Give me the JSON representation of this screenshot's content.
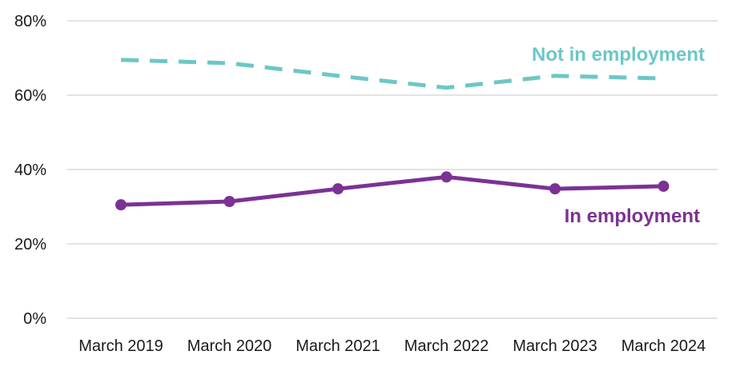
{
  "chart_data": {
    "type": "line",
    "title": "",
    "xlabel": "",
    "ylabel": "",
    "categories": [
      "March 2019",
      "March 2020",
      "March 2021",
      "March 2022",
      "March 2023",
      "March 2024"
    ],
    "ylim": [
      0,
      80
    ],
    "yticks": [
      0,
      20,
      40,
      60,
      80
    ],
    "ytick_labels": [
      "0%",
      "20%",
      "40%",
      "60%",
      "80%"
    ],
    "grid": "horizontal",
    "legend": "inline labels beside lines",
    "series": [
      {
        "name": "Not in employment",
        "values": [
          69.5,
          68.6,
          65.2,
          62.0,
          65.2,
          64.5
        ],
        "color": "#6cc7c6",
        "style": "dashed",
        "markers": false
      },
      {
        "name": "In employment",
        "values": [
          30.5,
          31.4,
          34.8,
          38.0,
          34.8,
          35.5
        ],
        "color": "#7b3294",
        "style": "solid",
        "markers": true
      }
    ]
  }
}
